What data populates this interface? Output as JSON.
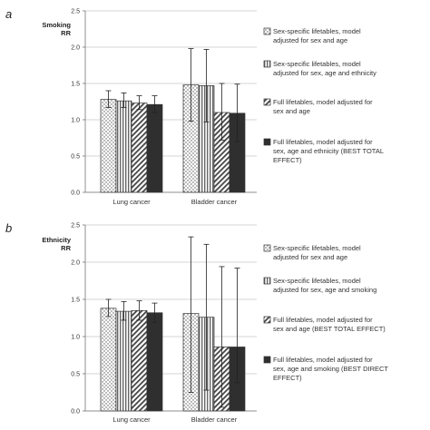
{
  "chart_data": [
    {
      "type": "bar",
      "panel": "a",
      "ylabel": [
        "Smoking",
        "RR"
      ],
      "ylim": [
        0,
        2.5
      ],
      "yticks": [
        "0.0",
        "0.5",
        "1.0",
        "1.5",
        "2.0",
        "2.5"
      ],
      "categories": [
        "Lung cancer",
        "Bladder cancer"
      ],
      "series": [
        {
          "name": [
            "Sex-specific lifetables, model",
            "adjusted for sex and age"
          ],
          "pattern": "dots",
          "values": [
            1.28,
            1.48
          ],
          "lower": [
            1.17,
            0.98
          ],
          "upper": [
            1.4,
            1.98
          ]
        },
        {
          "name": [
            "Sex-specific lifetables, model",
            "adjusted for sex, age and ethnicity"
          ],
          "pattern": "vlines",
          "values": [
            1.26,
            1.47
          ],
          "lower": [
            1.17,
            0.97
          ],
          "upper": [
            1.37,
            1.97
          ]
        },
        {
          "name": [
            "Full lifetables, model adjusted for",
            "sex and age"
          ],
          "pattern": "diag",
          "values": [
            1.23,
            1.1
          ],
          "lower": [
            1.14,
            0.72
          ],
          "upper": [
            1.33,
            1.5
          ]
        },
        {
          "name": [
            "Full lifetables, model adjusted for",
            "sex, age and ethnicity (BEST TOTAL",
            "EFFECT)"
          ],
          "pattern": "dark",
          "values": [
            1.21,
            1.09
          ],
          "lower": [
            1.1,
            0.7
          ],
          "upper": [
            1.33,
            1.49
          ]
        }
      ],
      "legend_position": "right",
      "grid": true
    },
    {
      "type": "bar",
      "panel": "b",
      "ylabel": [
        "Ethnicity",
        "RR"
      ],
      "ylim": [
        0,
        2.5
      ],
      "yticks": [
        "0.0",
        "0.5",
        "1.0",
        "1.5",
        "2.0",
        "2.5"
      ],
      "categories": [
        "Lung cancer",
        "Bladder cancer"
      ],
      "series": [
        {
          "name": [
            "Sex-specific lifetables, model",
            "adjusted for sex and age"
          ],
          "pattern": "dots",
          "values": [
            1.38,
            1.31
          ],
          "lower": [
            1.27,
            0.25
          ],
          "upper": [
            1.5,
            2.34
          ]
        },
        {
          "name": [
            "Sex-specific lifetables, model",
            "adjusted for sex, age and smoking"
          ],
          "pattern": "vlines",
          "values": [
            1.34,
            1.26
          ],
          "lower": [
            1.22,
            0.28
          ],
          "upper": [
            1.47,
            2.24
          ]
        },
        {
          "name": [
            "Full lifetables, model adjusted for",
            "sex and age (BEST TOTAL EFFECT)"
          ],
          "pattern": "diag",
          "values": [
            1.35,
            0.86
          ],
          "lower": [
            1.22,
            0.05
          ],
          "upper": [
            1.48,
            1.94
          ]
        },
        {
          "name": [
            "Full lifetables, model adjusted for",
            "sex, age and smoking (BEST DIRECT",
            "EFFECT)"
          ],
          "pattern": "dark",
          "values": [
            1.32,
            0.86
          ],
          "lower": [
            1.19,
            0.38
          ],
          "upper": [
            1.45,
            1.92
          ]
        }
      ],
      "legend_position": "right",
      "grid": true
    }
  ]
}
